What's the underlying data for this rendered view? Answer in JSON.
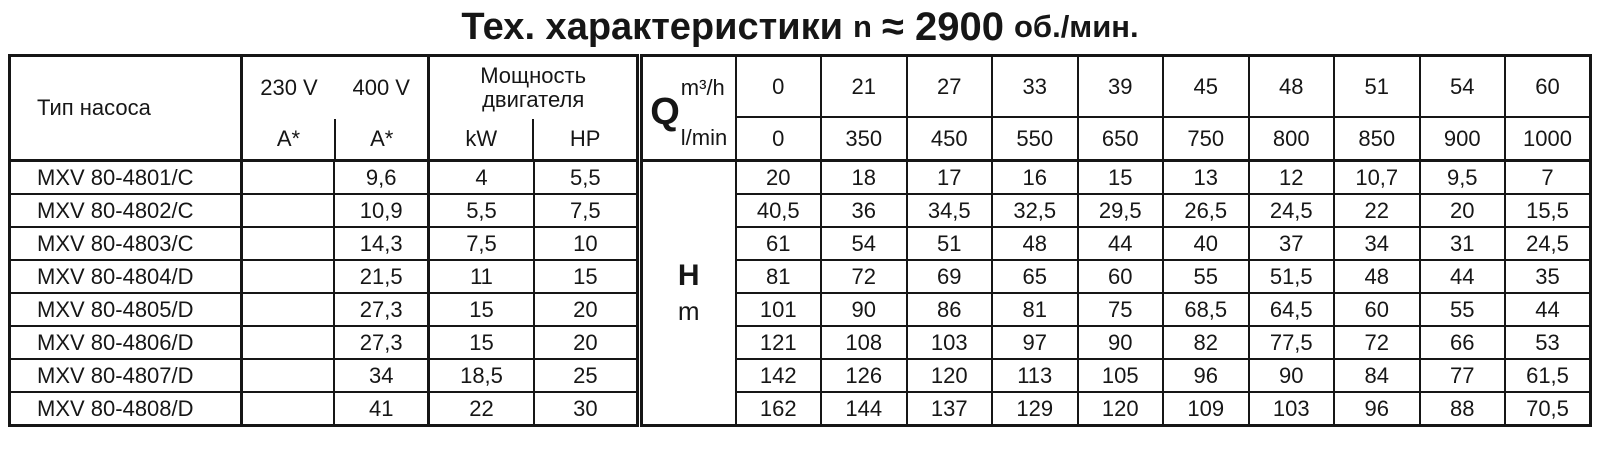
{
  "title": {
    "prefix": "Тех. характеристики",
    "symbol": "n",
    "value": "≈ 2900",
    "units": "об./мин."
  },
  "motor_table": {
    "headers": {
      "pump_type": "Тип насоса",
      "voltage_230": "230 V",
      "voltage_400": "400 V",
      "amps_230": "A*",
      "amps_400": "A*",
      "power_title_line1": "Мощность",
      "power_title_line2": "двигателя",
      "kw": "kW",
      "hp": "HP"
    },
    "rows": [
      {
        "pump_type": "MXV 80-4801/C",
        "amps_230": "",
        "amps_400": "9,6",
        "kw": "4",
        "hp": "5,5"
      },
      {
        "pump_type": "MXV 80-4802/C",
        "amps_230": "",
        "amps_400": "10,9",
        "kw": "5,5",
        "hp": "7,5"
      },
      {
        "pump_type": "MXV 80-4803/C",
        "amps_230": "",
        "amps_400": "14,3",
        "kw": "7,5",
        "hp": "10"
      },
      {
        "pump_type": "MXV 80-4804/D",
        "amps_230": "",
        "amps_400": "21,5",
        "kw": "11",
        "hp": "15"
      },
      {
        "pump_type": "MXV 80-4805/D",
        "amps_230": "",
        "amps_400": "27,3",
        "kw": "15",
        "hp": "20"
      },
      {
        "pump_type": "MXV 80-4806/D",
        "amps_230": "",
        "amps_400": "27,3",
        "kw": "15",
        "hp": "20"
      },
      {
        "pump_type": "MXV 80-4807/D",
        "amps_230": "",
        "amps_400": "34",
        "kw": "18,5",
        "hp": "25"
      },
      {
        "pump_type": "MXV 80-4808/D",
        "amps_230": "",
        "amps_400": "41",
        "kw": "22",
        "hp": "30"
      }
    ]
  },
  "performance_table": {
    "q_label": "Q",
    "q_unit_top": "m³/h",
    "q_unit_bottom": "l/min",
    "flow_m3h": [
      "0",
      "21",
      "27",
      "33",
      "39",
      "45",
      "48",
      "51",
      "54",
      "60"
    ],
    "flow_lmin": [
      "0",
      "350",
      "450",
      "550",
      "650",
      "750",
      "800",
      "850",
      "900",
      "1000"
    ],
    "h_label": "H",
    "h_unit": "m",
    "head_values_m": [
      [
        "20",
        "18",
        "17",
        "16",
        "15",
        "13",
        "12",
        "10,7",
        "9,5",
        "7"
      ],
      [
        "40,5",
        "36",
        "34,5",
        "32,5",
        "29,5",
        "26,5",
        "24,5",
        "22",
        "20",
        "15,5"
      ],
      [
        "61",
        "54",
        "51",
        "48",
        "44",
        "40",
        "37",
        "34",
        "31",
        "24,5"
      ],
      [
        "81",
        "72",
        "69",
        "65",
        "60",
        "55",
        "51,5",
        "48",
        "44",
        "35"
      ],
      [
        "101",
        "90",
        "86",
        "81",
        "75",
        "68,5",
        "64,5",
        "60",
        "55",
        "44"
      ],
      [
        "121",
        "108",
        "103",
        "97",
        "90",
        "82",
        "77,5",
        "72",
        "66",
        "53"
      ],
      [
        "142",
        "126",
        "120",
        "113",
        "105",
        "96",
        "90",
        "84",
        "77",
        "61,5"
      ],
      [
        "162",
        "144",
        "137",
        "129",
        "120",
        "109",
        "103",
        "96",
        "88",
        "70,5"
      ]
    ]
  },
  "colors": {
    "background": "#ffffff",
    "border": "#161616",
    "text": "#161616"
  }
}
